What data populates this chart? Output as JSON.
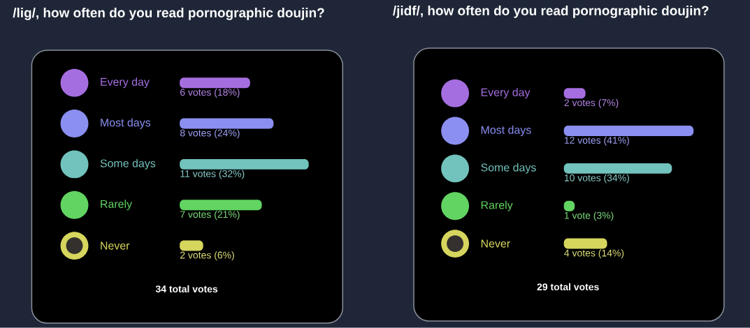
{
  "chart_data": [
    {
      "type": "bar",
      "orientation": "horizontal",
      "title": "/lig/, how often do you read pornographic doujin?",
      "categories": [
        "Every day",
        "Most days",
        "Some days",
        "Rarely",
        "Never"
      ],
      "values": [
        6,
        8,
        11,
        7,
        2
      ],
      "colors": [
        "#a56ee0",
        "#8a8ff0",
        "#72c2bd",
        "#62d462",
        "#d6d65e"
      ],
      "value_labels": [
        "6 votes (18%)",
        "8 votes (24%)",
        "11 votes (32%)",
        "7 votes (21%)",
        "2 votes (6%)"
      ],
      "annotations": [
        "34 total votes"
      ]
    },
    {
      "type": "bar",
      "orientation": "horizontal",
      "title": "/jidf/, how often do you read pornographic doujin?",
      "categories": [
        "Every day",
        "Most days",
        "Some days",
        "Rarely",
        "Never"
      ],
      "values": [
        2,
        12,
        10,
        1,
        4
      ],
      "colors": [
        "#a56ee0",
        "#8a8ff0",
        "#72c2bd",
        "#62d462",
        "#d6d65e"
      ],
      "value_labels": [
        "2 votes (7%)",
        "12 votes (41%)",
        "10 votes (34%)",
        "1 vote (3%)",
        "4 votes (14%)"
      ],
      "annotations": [
        "29 total votes"
      ]
    }
  ]
}
